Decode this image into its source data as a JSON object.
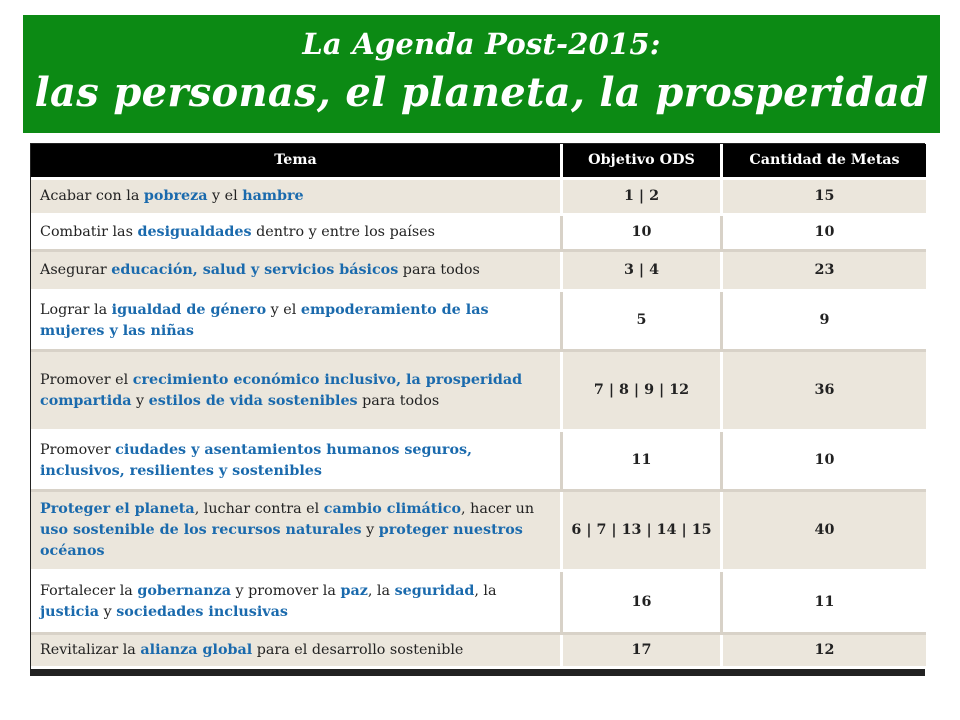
{
  "banner": {
    "line1": "La Agenda Post-2015:",
    "line2": "las personas, el planeta, la prosperidad",
    "bg_color": "#0c8a14"
  },
  "table": {
    "headers": [
      "Tema",
      "Objetivo ODS",
      "Cantidad de Metas"
    ],
    "highlight_color": "#1a6aad",
    "rows": [
      {
        "tema": [
          {
            "t": "Acabar con la ",
            "h": false
          },
          {
            "t": "pobreza",
            "h": true
          },
          {
            "t": " y el ",
            "h": false
          },
          {
            "t": "hambre",
            "h": true
          }
        ],
        "ods": "1  |  2",
        "metas": "15"
      },
      {
        "tema": [
          {
            "t": "Combatir las ",
            "h": false
          },
          {
            "t": "desigualdades",
            "h": true
          },
          {
            "t": " dentro y entre los países",
            "h": false
          }
        ],
        "ods": "10",
        "metas": "10"
      },
      {
        "tema": [
          {
            "t": "Asegurar ",
            "h": false
          },
          {
            "t": "educación, salud y servicios básicos",
            "h": true
          },
          {
            "t": " para todos",
            "h": false
          }
        ],
        "ods": "3 | 4",
        "metas": "23"
      },
      {
        "tema": [
          {
            "t": "Lograr la ",
            "h": false
          },
          {
            "t": "igualdad de género",
            "h": true
          },
          {
            "t": " y el ",
            "h": false
          },
          {
            "t": "empoderamiento de las mujeres y las niñas",
            "h": true
          }
        ],
        "ods": "5",
        "metas": "9"
      },
      {
        "tema": [
          {
            "t": "Promover el ",
            "h": false
          },
          {
            "t": "crecimiento económico inclusivo, la prosperidad compartida",
            "h": true
          },
          {
            "t": " y ",
            "h": false
          },
          {
            "t": "estilos de vida sostenibles",
            "h": true
          },
          {
            "t": " para todos",
            "h": false
          }
        ],
        "ods": "7 | 8 | 9 | 12",
        "metas": "36"
      },
      {
        "tema": [
          {
            "t": "Promover ",
            "h": false
          },
          {
            "t": "ciudades y asentamientos humanos seguros, inclusivos, resilientes y sostenibles",
            "h": true
          }
        ],
        "ods": "11",
        "metas": "10"
      },
      {
        "tema": [
          {
            "t": "Proteger el planeta",
            "h": true
          },
          {
            "t": ", luchar contra el ",
            "h": false
          },
          {
            "t": "cambio climático",
            "h": true
          },
          {
            "t": ", hacer un ",
            "h": false
          },
          {
            "t": "uso sostenible de los recursos naturales",
            "h": true
          },
          {
            "t": " y ",
            "h": false
          },
          {
            "t": "proteger nuestros océanos",
            "h": true
          }
        ],
        "ods": "6 | 7 | 13 | 14 | 15",
        "metas": "40"
      },
      {
        "tema": [
          {
            "t": "Fortalecer la ",
            "h": false
          },
          {
            "t": "gobernanza",
            "h": true
          },
          {
            "t": " y promover la ",
            "h": false
          },
          {
            "t": "paz",
            "h": true
          },
          {
            "t": ", la ",
            "h": false
          },
          {
            "t": "seguridad",
            "h": true
          },
          {
            "t": ", la ",
            "h": false
          },
          {
            "t": "justicia",
            "h": true
          },
          {
            "t": " y ",
            "h": false
          },
          {
            "t": "sociedades inclusivas",
            "h": true
          }
        ],
        "ods": "16",
        "metas": "11"
      },
      {
        "tema": [
          {
            "t": "Revitalizar la ",
            "h": false
          },
          {
            "t": "alianza global",
            "h": true
          },
          {
            "t": " para el desarrollo sostenible",
            "h": false
          }
        ],
        "ods": "17",
        "metas": "12"
      }
    ]
  }
}
